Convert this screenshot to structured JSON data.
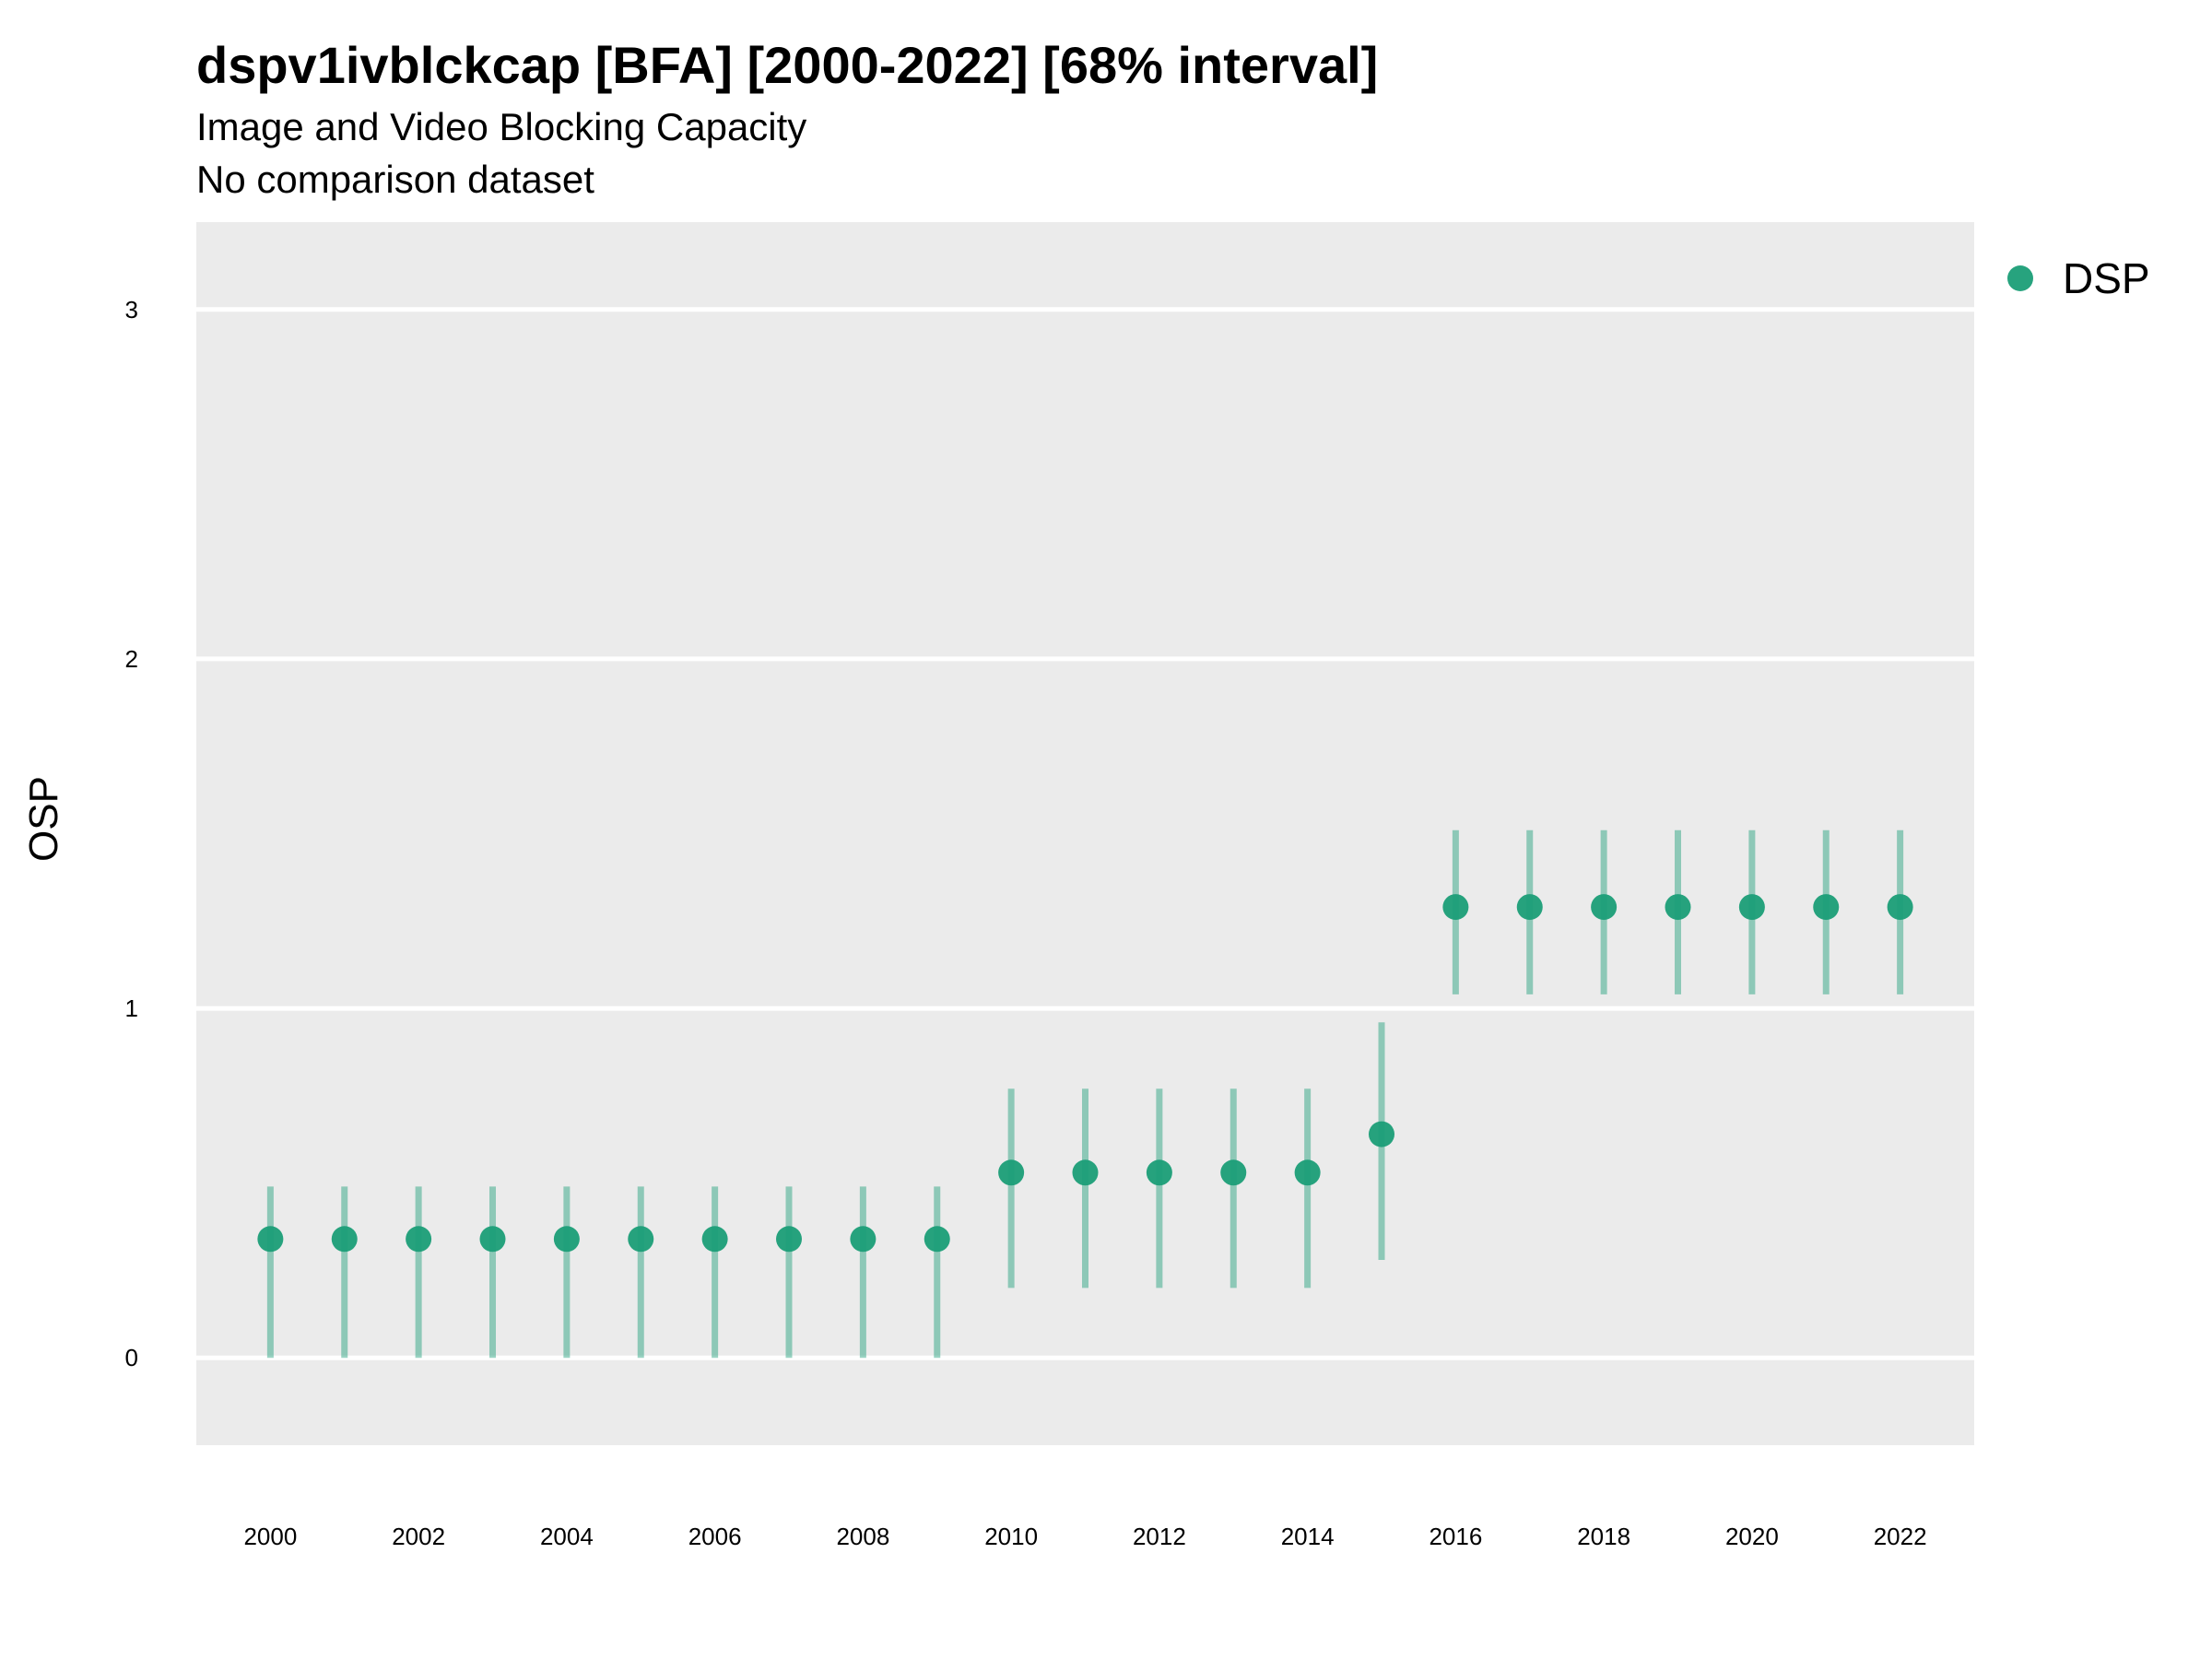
{
  "chart_data": {
    "type": "scatter",
    "title": "dspv1ivblckcap [BFA] [2000-2022] [68% interval]",
    "subtitle": "Image and Video Blocking Capacity",
    "caption": "No comparison dataset",
    "xlabel": "",
    "ylabel": "OSP",
    "xlim": [
      1999,
      2023
    ],
    "ylim": [
      -0.25,
      3.25
    ],
    "x_ticks": [
      2000,
      2002,
      2004,
      2006,
      2008,
      2010,
      2012,
      2014,
      2016,
      2018,
      2020,
      2022
    ],
    "y_ticks": [
      0,
      1,
      2,
      3
    ],
    "grid": true,
    "legend_position": "top-right",
    "series": [
      {
        "name": "DSP",
        "color": "#1b9e77",
        "x": [
          2000,
          2001,
          2002,
          2003,
          2004,
          2005,
          2006,
          2007,
          2008,
          2009,
          2010,
          2011,
          2012,
          2013,
          2014,
          2015,
          2016,
          2017,
          2018,
          2019,
          2020,
          2021,
          2022
        ],
        "y": [
          0.34,
          0.34,
          0.34,
          0.34,
          0.34,
          0.34,
          0.34,
          0.34,
          0.34,
          0.34,
          0.53,
          0.53,
          0.53,
          0.53,
          0.53,
          0.64,
          1.29,
          1.29,
          1.29,
          1.29,
          1.29,
          1.29,
          1.29
        ],
        "lower": [
          0.0,
          0.0,
          0.0,
          0.0,
          0.0,
          0.0,
          0.0,
          0.0,
          0.0,
          0.0,
          0.2,
          0.2,
          0.2,
          0.2,
          0.2,
          0.28,
          1.04,
          1.04,
          1.04,
          1.04,
          1.04,
          1.04,
          1.04
        ],
        "upper": [
          0.49,
          0.49,
          0.49,
          0.49,
          0.49,
          0.49,
          0.49,
          0.49,
          0.49,
          0.49,
          0.77,
          0.77,
          0.77,
          0.77,
          0.77,
          0.96,
          1.51,
          1.51,
          1.51,
          1.51,
          1.51,
          1.51,
          1.51
        ]
      }
    ]
  }
}
